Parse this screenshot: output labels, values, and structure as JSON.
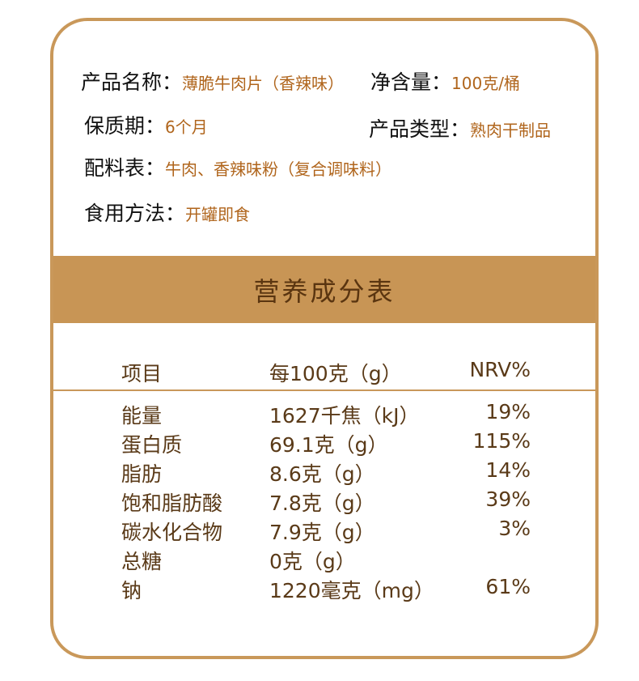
{
  "product_info": {
    "name": {
      "label": "产品名称：",
      "value": "薄脆牛肉片（香辣味）"
    },
    "net_content": {
      "label": "净含量：",
      "value": "100克/桶"
    },
    "shelf_life": {
      "label": "保质期：",
      "value": "6个月"
    },
    "product_type": {
      "label": "产品类型：",
      "value": "熟肉干制品"
    },
    "ingredients": {
      "label": "配料表：",
      "value": "牛肉、香辣味粉（复合调味料）"
    },
    "usage": {
      "label": "食用方法：",
      "value": "开罐即食"
    }
  },
  "nutrition": {
    "title": "营养成分表",
    "headers": [
      "项目",
      "每100克（g）",
      "NRV%"
    ],
    "rows": [
      [
        "能量",
        "1627千焦（kJ）",
        "19%"
      ],
      [
        "蛋白质",
        "69.1克（g）",
        "115%"
      ],
      [
        "脂肪",
        "8.6克（g）",
        "14%"
      ],
      [
        "饱和脂肪酸",
        "7.8克（g）",
        "39%"
      ],
      [
        "碳水化合物",
        "7.9克（g）",
        "3%"
      ],
      [
        "总糖",
        "0克（g）",
        ""
      ],
      [
        "钠",
        "1220毫克（mg）",
        "61%"
      ]
    ]
  },
  "colors": {
    "border": "#c9985a",
    "band": "#c89555",
    "value_text": "#b0651c",
    "table_text": "#5a3a18"
  }
}
